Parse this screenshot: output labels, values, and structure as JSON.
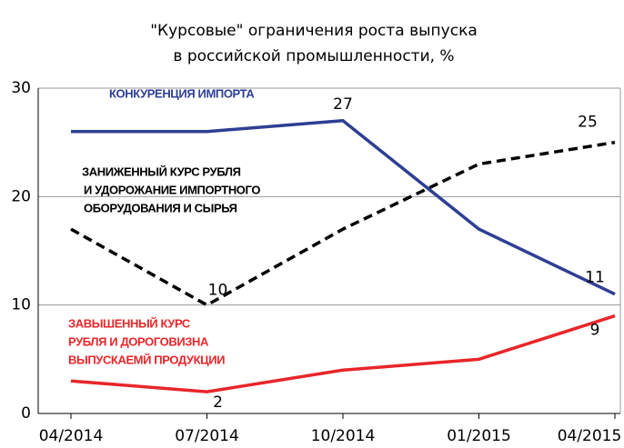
{
  "chart_data": {
    "type": "line",
    "title": [
      "\"Курсовые\" ограничения роста выпуска",
      "в российской промышленности, %"
    ],
    "categories": [
      "04/2014",
      "07/2014",
      "10/2014",
      "01/2015",
      "04/2015"
    ],
    "series": [
      {
        "name": [
          "КОНКУРЕНЦИЯ ИМПОРТА"
        ],
        "color": "#2e3f94",
        "dashed": false,
        "values": [
          26,
          26,
          27,
          17,
          11
        ]
      },
      {
        "name": [
          "ЗАНИЖЕННЫЙ КУРС РУБЛЯ",
          "И УДОРОЖАНИЕ ИМПОРТНОГО",
          "ОБОРУДОВАНИЯ И СЫРЬЯ"
        ],
        "color": "#000000",
        "dashed": true,
        "values": [
          17,
          10,
          17,
          23,
          25
        ]
      },
      {
        "name": [
          "ЗАВЫШЕННЫЙ КУРС",
          "РУБЛЯ И ДОРОГОВИЗНА",
          "ВЫПУСКАЕМЙ ПРОДУКЦИИ"
        ],
        "color": "#e8262a",
        "dashed": false,
        "values": [
          3,
          2,
          4,
          5,
          9
        ]
      }
    ],
    "ylim": [
      0,
      30
    ],
    "yticks": [
      0,
      10,
      20,
      30
    ],
    "grid": true
  }
}
